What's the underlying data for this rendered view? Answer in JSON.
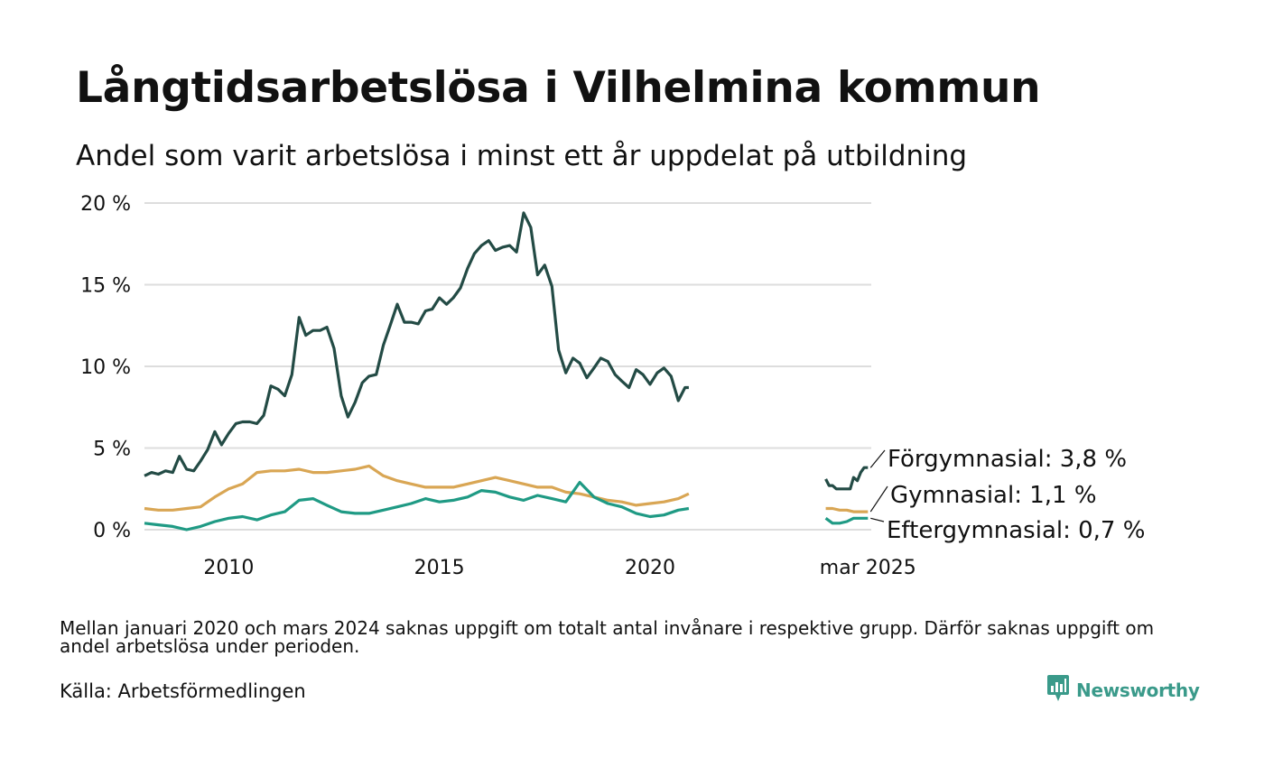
{
  "title": "Långtidsarbetslösa i Vilhelmina kommun",
  "subtitle": "Andel som varit arbetslösa i minst ett år uppdelat på utbildning",
  "note": "Mellan januari 2020 och mars 2024 saknas uppgift om totalt antal invånare i respektive grupp. Därför saknas uppgift om andel arbetslösa under perioden.",
  "source": "Källa: Arbetsförmedlingen",
  "brand": "Newsworthy",
  "colors": {
    "forgymnasial": "#234b45",
    "gymnasial": "#d9a654",
    "eftergymnasial": "#1f9a84",
    "grid": "#dddddd",
    "brand": "#3a9a8a"
  },
  "chart_data": {
    "type": "line",
    "x_unit": "year (decimal, monthly data)",
    "xlim": [
      2008.0,
      2025.25
    ],
    "ylim": [
      0,
      20
    ],
    "y_ticks": [
      0,
      5,
      10,
      15,
      20
    ],
    "y_tick_labels": [
      "0 %",
      "5 %",
      "10 %",
      "15 %",
      "20 %"
    ],
    "x_ticks": [
      2010,
      2015,
      2020,
      2025.17
    ],
    "x_tick_labels": [
      "2010",
      "2015",
      "2020",
      "mar 2025"
    ],
    "grid": "horizontal",
    "series": [
      {
        "key": "forgymnasial",
        "label": "Förgymnasial: 3,8 %",
        "color": "#234b45",
        "segments": [
          {
            "x": [
              2008.0,
              2008.17,
              2008.33,
              2008.5,
              2008.67,
              2008.83,
              2009.0,
              2009.17,
              2009.33,
              2009.5,
              2009.67,
              2009.83,
              2010.0,
              2010.17,
              2010.33,
              2010.5,
              2010.67,
              2010.83,
              2011.0,
              2011.17,
              2011.33,
              2011.5,
              2011.67,
              2011.83,
              2012.0,
              2012.17,
              2012.33,
              2012.5,
              2012.67,
              2012.83,
              2013.0,
              2013.17,
              2013.33,
              2013.5,
              2013.67,
              2013.83,
              2014.0,
              2014.17,
              2014.33,
              2014.5,
              2014.67,
              2014.83,
              2015.0,
              2015.17,
              2015.33,
              2015.5,
              2015.67,
              2015.83,
              2016.0,
              2016.17,
              2016.33,
              2016.5,
              2016.67,
              2016.83,
              2017.0,
              2017.17,
              2017.33,
              2017.5,
              2017.67,
              2017.83,
              2018.0,
              2018.17,
              2018.33,
              2018.5,
              2018.67,
              2018.83,
              2019.0,
              2019.17,
              2019.33,
              2019.5,
              2019.67,
              2019.83,
              2020.0,
              2020.17,
              2020.33,
              2020.5,
              2020.67,
              2020.83,
              2020.92
            ],
            "y": [
              3.3,
              3.5,
              3.4,
              3.6,
              3.5,
              4.5,
              3.7,
              3.6,
              4.2,
              4.9,
              6.0,
              5.2,
              5.9,
              6.5,
              6.6,
              6.6,
              6.5,
              7.0,
              8.8,
              8.6,
              8.2,
              9.5,
              13.0,
              11.9,
              12.2,
              12.2,
              12.4,
              11.1,
              8.2,
              6.9,
              7.8,
              9.0,
              9.4,
              9.5,
              11.3,
              12.5,
              13.8,
              12.7,
              12.7,
              12.6,
              13.4,
              13.5,
              14.2,
              13.8,
              14.2,
              14.8,
              16.0,
              16.9,
              17.4,
              17.7,
              17.1,
              17.3,
              17.4,
              17.0,
              19.4,
              18.5,
              15.6,
              16.2,
              14.9,
              11.0,
              9.6,
              10.5,
              10.2,
              9.3,
              9.9,
              10.5,
              10.3,
              9.5,
              9.1,
              8.7,
              9.8,
              9.5,
              8.9,
              9.6,
              9.9,
              9.4,
              7.9,
              8.7,
              8.7
            ]
          },
          {
            "x": [
              2024.17,
              2024.25,
              2024.33,
              2024.42,
              2024.5,
              2024.58,
              2024.67,
              2024.75,
              2024.83,
              2024.92,
              2025.0,
              2025.08,
              2025.17
            ],
            "y": [
              3.1,
              2.7,
              2.7,
              2.5,
              2.5,
              2.5,
              2.5,
              2.5,
              3.2,
              3.0,
              3.5,
              3.8,
              3.8
            ]
          }
        ]
      },
      {
        "key": "gymnasial",
        "label": "Gymnasial: 1,1 %",
        "color": "#d9a654",
        "segments": [
          {
            "x": [
              2008.0,
              2008.33,
              2008.67,
              2009.0,
              2009.33,
              2009.67,
              2010.0,
              2010.33,
              2010.67,
              2011.0,
              2011.33,
              2011.67,
              2012.0,
              2012.33,
              2012.67,
              2013.0,
              2013.33,
              2013.67,
              2014.0,
              2014.33,
              2014.67,
              2015.0,
              2015.33,
              2015.67,
              2016.0,
              2016.33,
              2016.67,
              2017.0,
              2017.33,
              2017.67,
              2018.0,
              2018.33,
              2018.67,
              2019.0,
              2019.33,
              2019.67,
              2020.0,
              2020.33,
              2020.67,
              2020.92
            ],
            "y": [
              1.3,
              1.2,
              1.2,
              1.3,
              1.4,
              2.0,
              2.5,
              2.8,
              3.5,
              3.6,
              3.6,
              3.7,
              3.5,
              3.5,
              3.6,
              3.7,
              3.9,
              3.3,
              3.0,
              2.8,
              2.6,
              2.6,
              2.6,
              2.8,
              3.0,
              3.2,
              3.0,
              2.8,
              2.6,
              2.6,
              2.3,
              2.2,
              2.0,
              1.8,
              1.7,
              1.5,
              1.6,
              1.7,
              1.9,
              2.2
            ]
          },
          {
            "x": [
              2024.17,
              2024.33,
              2024.5,
              2024.67,
              2024.83,
              2025.0,
              2025.17
            ],
            "y": [
              1.3,
              1.3,
              1.2,
              1.2,
              1.1,
              1.1,
              1.1
            ]
          }
        ]
      },
      {
        "key": "eftergymnasial",
        "label": "Eftergymnasial: 0,7 %",
        "color": "#1f9a84",
        "segments": [
          {
            "x": [
              2008.0,
              2008.33,
              2008.67,
              2009.0,
              2009.33,
              2009.67,
              2010.0,
              2010.33,
              2010.67,
              2011.0,
              2011.33,
              2011.67,
              2012.0,
              2012.33,
              2012.67,
              2013.0,
              2013.33,
              2013.67,
              2014.0,
              2014.33,
              2014.67,
              2015.0,
              2015.33,
              2015.67,
              2016.0,
              2016.33,
              2016.67,
              2017.0,
              2017.33,
              2017.67,
              2018.0,
              2018.33,
              2018.67,
              2019.0,
              2019.33,
              2019.67,
              2020.0,
              2020.33,
              2020.67,
              2020.92
            ],
            "y": [
              0.4,
              0.3,
              0.2,
              0.0,
              0.2,
              0.5,
              0.7,
              0.8,
              0.6,
              0.9,
              1.1,
              1.8,
              1.9,
              1.5,
              1.1,
              1.0,
              1.0,
              1.2,
              1.4,
              1.6,
              1.9,
              1.7,
              1.8,
              2.0,
              2.4,
              2.3,
              2.0,
              1.8,
              2.1,
              1.9,
              1.7,
              2.9,
              2.0,
              1.6,
              1.4,
              1.0,
              0.8,
              0.9,
              1.2,
              1.3
            ]
          },
          {
            "x": [
              2024.17,
              2024.33,
              2024.5,
              2024.67,
              2024.83,
              2025.0,
              2025.17
            ],
            "y": [
              0.7,
              0.4,
              0.4,
              0.5,
              0.7,
              0.7,
              0.7
            ]
          }
        ]
      }
    ]
  }
}
